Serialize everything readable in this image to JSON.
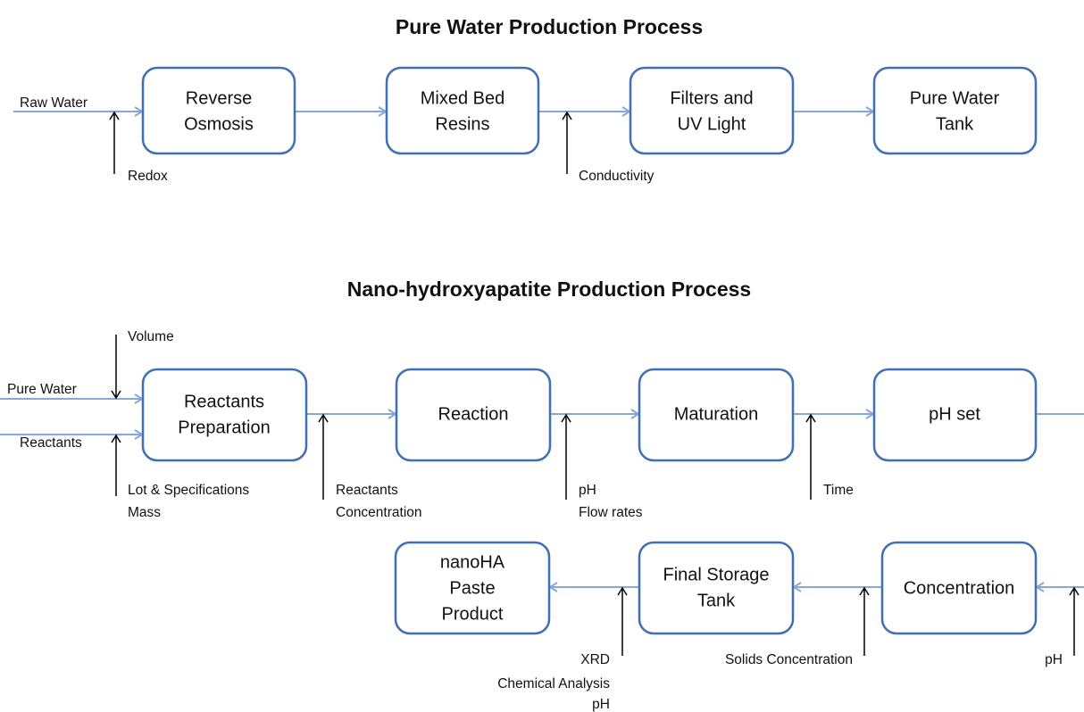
{
  "titles": [
    "Pure Water Production Process",
    "Nano-hydroxyapatite Production Process"
  ],
  "nodes": [
    {
      "lines": [
        "Reverse",
        "Osmosis"
      ]
    },
    {
      "lines": [
        "Mixed Bed",
        "Resins"
      ]
    },
    {
      "lines": [
        "Filters and",
        "UV Light"
      ]
    },
    {
      "lines": [
        "Pure Water",
        "Tank"
      ]
    },
    {
      "lines": [
        "Reactants",
        "Preparation"
      ]
    },
    {
      "lines": [
        "Reaction"
      ]
    },
    {
      "lines": [
        "Maturation"
      ]
    },
    {
      "lines": [
        "pH set"
      ]
    },
    {
      "lines": [
        "nanoHA",
        "Paste",
        "Product"
      ]
    },
    {
      "lines": [
        "Final Storage",
        "Tank"
      ]
    },
    {
      "lines": [
        "Concentration"
      ]
    }
  ],
  "annotations": [
    {
      "lines": [
        "Raw Water"
      ]
    },
    {
      "lines": [
        "Redox"
      ]
    },
    {
      "lines": [
        "Conductivity"
      ]
    },
    {
      "lines": [
        "Volume"
      ]
    },
    {
      "lines": [
        "Pure Water"
      ]
    },
    {
      "lines": [
        "Reactants"
      ]
    },
    {
      "lines": [
        "Lot & Specifications",
        "Mass"
      ]
    },
    {
      "lines": [
        "Reactants",
        "Concentration"
      ]
    },
    {
      "lines": [
        "pH",
        "Flow rates"
      ]
    },
    {
      "lines": [
        "Time"
      ]
    },
    {
      "lines": [
        "Solids Concentration"
      ]
    },
    {
      "lines": [
        "XRD",
        "Chemical Analysis",
        "pH"
      ]
    },
    {
      "lines": [
        "pH"
      ]
    }
  ]
}
